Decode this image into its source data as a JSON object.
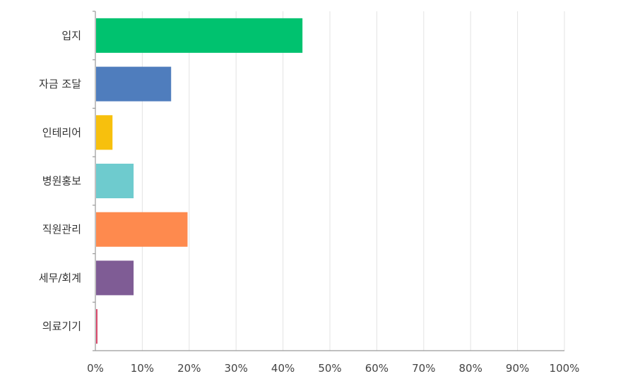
{
  "chart_data": {
    "type": "bar",
    "orientation": "horizontal",
    "categories": [
      "입지",
      "자금 조달",
      "인테리어",
      "병원홍보",
      "직원관리",
      "세무/회계",
      "의료기기"
    ],
    "values": [
      44,
      16,
      3.5,
      8,
      19.5,
      8,
      0.3
    ],
    "colors": [
      "#00c26f",
      "#4f7dbd",
      "#f7c00d",
      "#6ecbce",
      "#fe8a4e",
      "#7f5c95",
      "#d9496b"
    ],
    "xlim": [
      0,
      100
    ],
    "x_ticks": [
      "0%",
      "10%",
      "20%",
      "30%",
      "40%",
      "50%",
      "60%",
      "70%",
      "80%",
      "90%",
      "100%"
    ],
    "grid": true,
    "title": "",
    "xlabel": "",
    "ylabel": ""
  }
}
